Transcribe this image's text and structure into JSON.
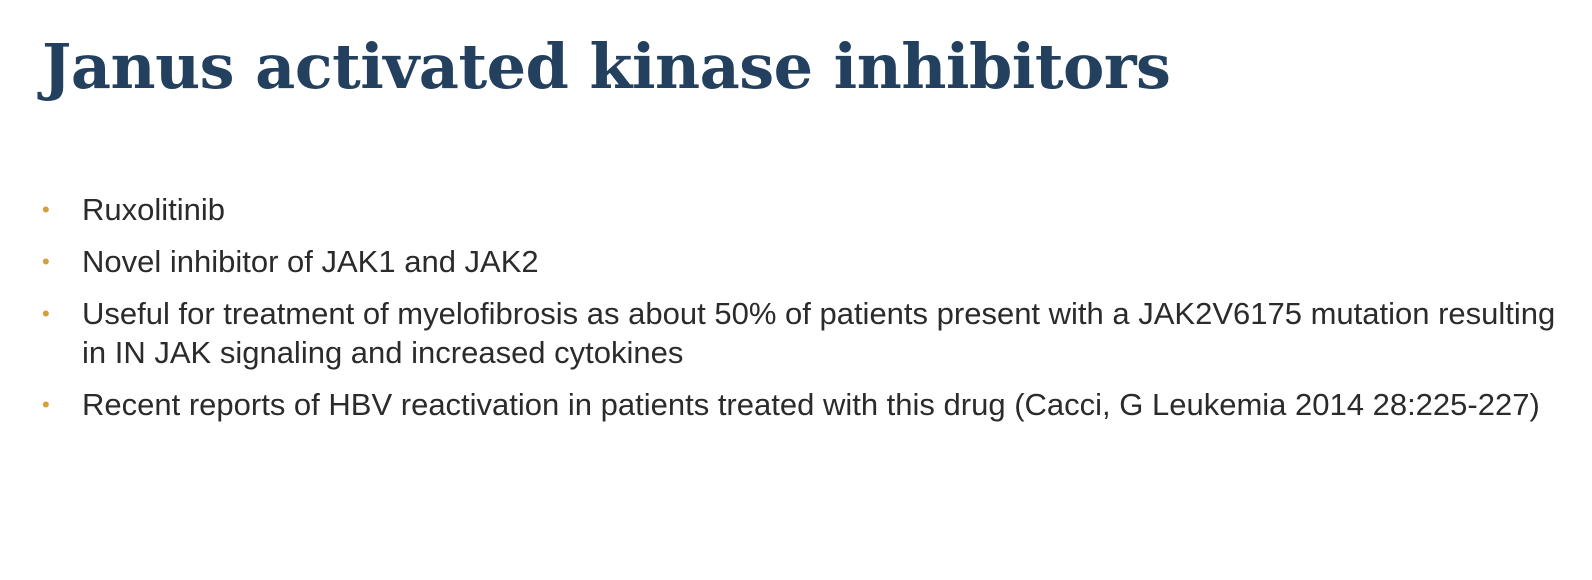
{
  "slide": {
    "title": "Janus activated kinase inhibitors",
    "bullet_glyph": "•",
    "bullets": [
      "Ruxolitinib",
      "Novel inhibitor of JAK1 and JAK2",
      "Useful for treatment of myelofibrosis as about 50% of patients present with a JAK2V6175 mutation resulting in IN JAK signaling and increased cytokines",
      "Recent reports of HBV reactivation in patients treated with this drug (Cacci, G Leukemia 2014 28:225-227)"
    ]
  },
  "colors": {
    "title": "#23405f",
    "bullet_marker": "#d4a03a",
    "body_text": "#2b2b2b",
    "background": "#ffffff"
  }
}
